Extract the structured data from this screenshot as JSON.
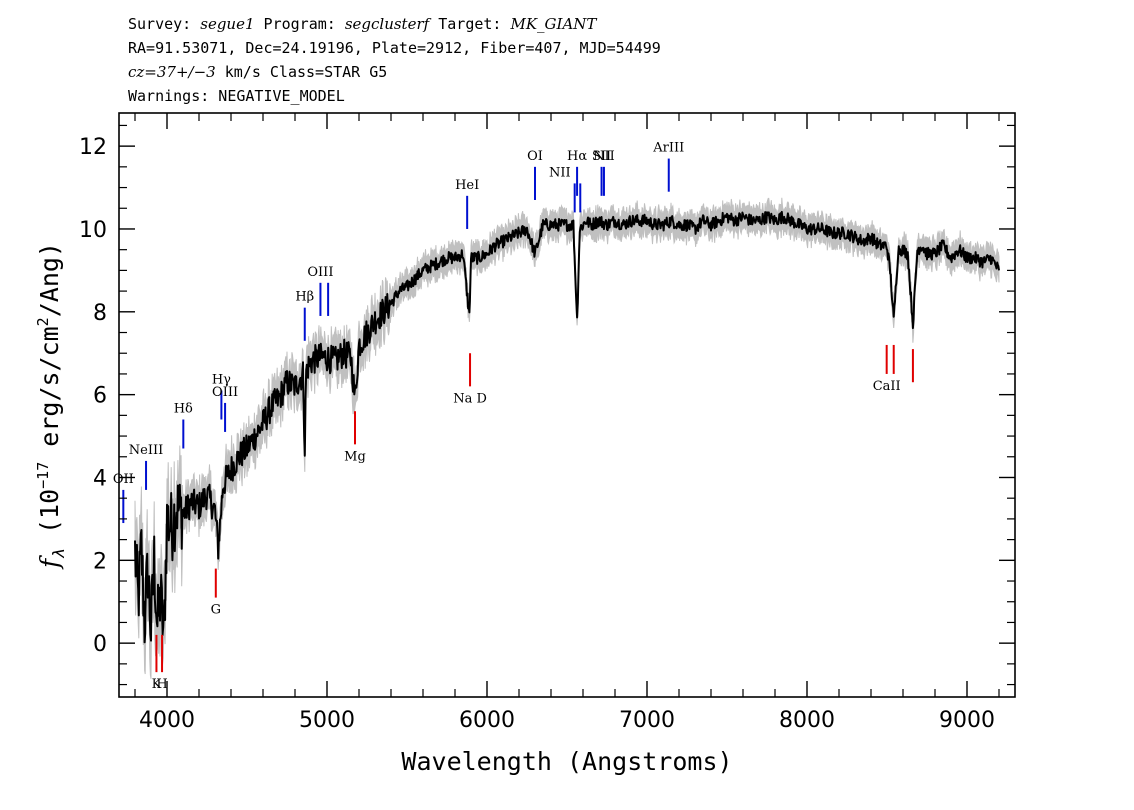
{
  "header": {
    "line1": {
      "survey_label": "Survey: ",
      "survey": "segue1",
      "program_label": " Program: ",
      "program": "segclusterf",
      "target_label": " Target: ",
      "target": "MK_GIANT"
    },
    "line2": "RA=91.53071, Dec=24.19196, Plate=2912, Fiber=407, MJD=54499",
    "line3": {
      "cz": "cz=37+/−3",
      "rest": " km/s Class=STAR G5"
    },
    "line4": "Warnings: NEGATIVE_MODEL"
  },
  "chart_data": {
    "type": "line",
    "xlabel": "Wavelength (Angstroms)",
    "ylabel_main": "f",
    "ylabel_sub": "λ",
    "ylabel_rest": " (10",
    "ylabel_exp": "−17",
    "ylabel_units": " erg/s/cm",
    "ylabel_exp2": "2",
    "ylabel_end": "/Ang)",
    "xlim": [
      3700,
      9300
    ],
    "ylim": [
      -1.3,
      12.8
    ],
    "xticks": [
      4000,
      5000,
      6000,
      7000,
      8000,
      9000
    ],
    "yticks": [
      0,
      2,
      4,
      6,
      8,
      10,
      12
    ],
    "series": [
      {
        "color": "#000000",
        "error_color": "#c0c0c0",
        "x": [
          3800,
          3820,
          3840,
          3860,
          3880,
          3900,
          3920,
          3940,
          3960,
          3980,
          4000,
          4030,
          4060,
          4100,
          4150,
          4200,
          4250,
          4300,
          4320,
          4350,
          4400,
          4450,
          4500,
          4550,
          4600,
          4650,
          4700,
          4750,
          4800,
          4850,
          4861,
          4870,
          4900,
          4950,
          5000,
          5050,
          5100,
          5150,
          5175,
          5200,
          5250,
          5300,
          5350,
          5400,
          5450,
          5500,
          5550,
          5600,
          5650,
          5700,
          5750,
          5800,
          5850,
          5890,
          5900,
          5950,
          6000,
          6050,
          6100,
          6150,
          6200,
          6250,
          6300,
          6350,
          6400,
          6450,
          6500,
          6540,
          6563,
          6580,
          6620,
          6650,
          6700,
          6750,
          6800,
          6850,
          6900,
          6950,
          7000,
          7050,
          7100,
          7150,
          7200,
          7250,
          7300,
          7350,
          7400,
          7450,
          7500,
          7550,
          7600,
          7650,
          7700,
          7750,
          7800,
          7850,
          7900,
          7950,
          8000,
          8050,
          8100,
          8150,
          8200,
          8250,
          8300,
          8350,
          8400,
          8450,
          8498,
          8520,
          8542,
          8570,
          8600,
          8630,
          8662,
          8690,
          8720,
          8750,
          8800,
          8850,
          8900,
          8950,
          9000,
          9050,
          9100,
          9150,
          9200
        ],
        "y": [
          2.2,
          1.0,
          2.3,
          0.5,
          1.8,
          0.3,
          2.0,
          0.4,
          1.2,
          0.1,
          3.0,
          2.8,
          3.3,
          3.1,
          3.4,
          3.3,
          3.6,
          3.2,
          2.3,
          3.8,
          4.2,
          4.5,
          4.7,
          5.0,
          5.3,
          5.7,
          5.9,
          6.3,
          6.2,
          6.5,
          4.7,
          6.6,
          6.8,
          6.9,
          6.9,
          6.8,
          7.0,
          6.9,
          5.9,
          7.2,
          7.5,
          7.8,
          8.0,
          8.2,
          8.5,
          8.6,
          8.8,
          9.0,
          9.1,
          9.2,
          9.3,
          9.3,
          9.4,
          7.9,
          9.3,
          9.3,
          9.4,
          9.6,
          9.7,
          9.8,
          9.9,
          10.0,
          9.4,
          10.1,
          10.1,
          10.1,
          10.1,
          10.1,
          7.8,
          10.0,
          10.2,
          10.1,
          10.2,
          10.1,
          10.2,
          10.1,
          10.2,
          10.2,
          10.2,
          10.1,
          10.1,
          10.2,
          10.1,
          10.1,
          10.0,
          10.2,
          10.1,
          10.2,
          10.3,
          10.2,
          10.3,
          10.2,
          10.2,
          10.3,
          10.2,
          10.3,
          10.2,
          10.1,
          10.0,
          10.0,
          10.0,
          9.9,
          9.9,
          9.9,
          9.8,
          9.7,
          9.8,
          9.6,
          9.6,
          9.0,
          7.8,
          9.5,
          9.5,
          9.4,
          7.7,
          9.5,
          9.6,
          9.4,
          9.4,
          9.6,
          9.3,
          9.5,
          9.3,
          9.3,
          9.2,
          9.3,
          9.0
        ]
      }
    ],
    "lines": [
      {
        "label": "OII",
        "wave": 3727,
        "color": "blue",
        "y0": 2.9,
        "y1": 3.7
      },
      {
        "label": "NeIII",
        "wave": 3869,
        "color": "blue",
        "y0": 3.7,
        "y1": 4.4
      },
      {
        "label": "Hδ",
        "wave": 4102,
        "color": "blue",
        "y0": 4.7,
        "y1": 5.4
      },
      {
        "label": "Hγ",
        "wave": 4340,
        "color": "blue",
        "y0": 5.4,
        "y1": 6.1
      },
      {
        "label": "OIII",
        "wave": 4363,
        "color": "blue",
        "y0": 5.1,
        "y1": 5.8
      },
      {
        "label": "Hβ",
        "wave": 4861,
        "color": "blue",
        "y0": 7.3,
        "y1": 8.1
      },
      {
        "label": "OIII",
        "wave": 4959,
        "color": "blue",
        "y0": 7.9,
        "y1": 8.7
      },
      {
        "label": "",
        "wave": 5007,
        "color": "blue",
        "y0": 7.9,
        "y1": 8.7
      },
      {
        "label": "HeI",
        "wave": 5876,
        "color": "blue",
        "y0": 10.0,
        "y1": 10.8
      },
      {
        "label": "OI",
        "wave": 6300,
        "color": "blue",
        "y0": 10.7,
        "y1": 11.5
      },
      {
        "label": "NII",
        "wave": 6548,
        "color": "blue",
        "y0": 10.4,
        "y1": 11.1
      },
      {
        "label": "Hα",
        "wave": 6563,
        "color": "blue",
        "y0": 10.8,
        "y1": 11.5
      },
      {
        "label": "",
        "wave": 6583,
        "color": "blue",
        "y0": 10.4,
        "y1": 11.1
      },
      {
        "label": "SII",
        "wave": 6716,
        "color": "blue",
        "y0": 10.8,
        "y1": 11.5
      },
      {
        "label": "NII",
        "wave": 6731,
        "color": "blue",
        "y0": 10.8,
        "y1": 11.5
      },
      {
        "label": "ArIII",
        "wave": 7136,
        "color": "blue",
        "y0": 10.9,
        "y1": 11.7
      },
      {
        "label": "K",
        "wave": 3934,
        "color": "red",
        "y0": -0.7,
        "y1": 0.2
      },
      {
        "label": "H",
        "wave": 3969,
        "color": "red",
        "y0": -0.7,
        "y1": 0.2
      },
      {
        "label": "G",
        "wave": 4305,
        "color": "red",
        "y0": 1.1,
        "y1": 1.8
      },
      {
        "label": "Mg",
        "wave": 5175,
        "color": "red",
        "y0": 4.8,
        "y1": 5.6
      },
      {
        "label": "Na  D",
        "wave": 5894,
        "color": "red",
        "y0": 6.2,
        "y1": 7.0
      },
      {
        "label": "CaII",
        "wave": 8498,
        "color": "red",
        "y0": 6.5,
        "y1": 7.2
      },
      {
        "label": "",
        "wave": 8542,
        "color": "red",
        "y0": 6.5,
        "y1": 7.2
      },
      {
        "label": "",
        "wave": 8662,
        "color": "red",
        "y0": 6.3,
        "y1": 7.1
      }
    ]
  }
}
